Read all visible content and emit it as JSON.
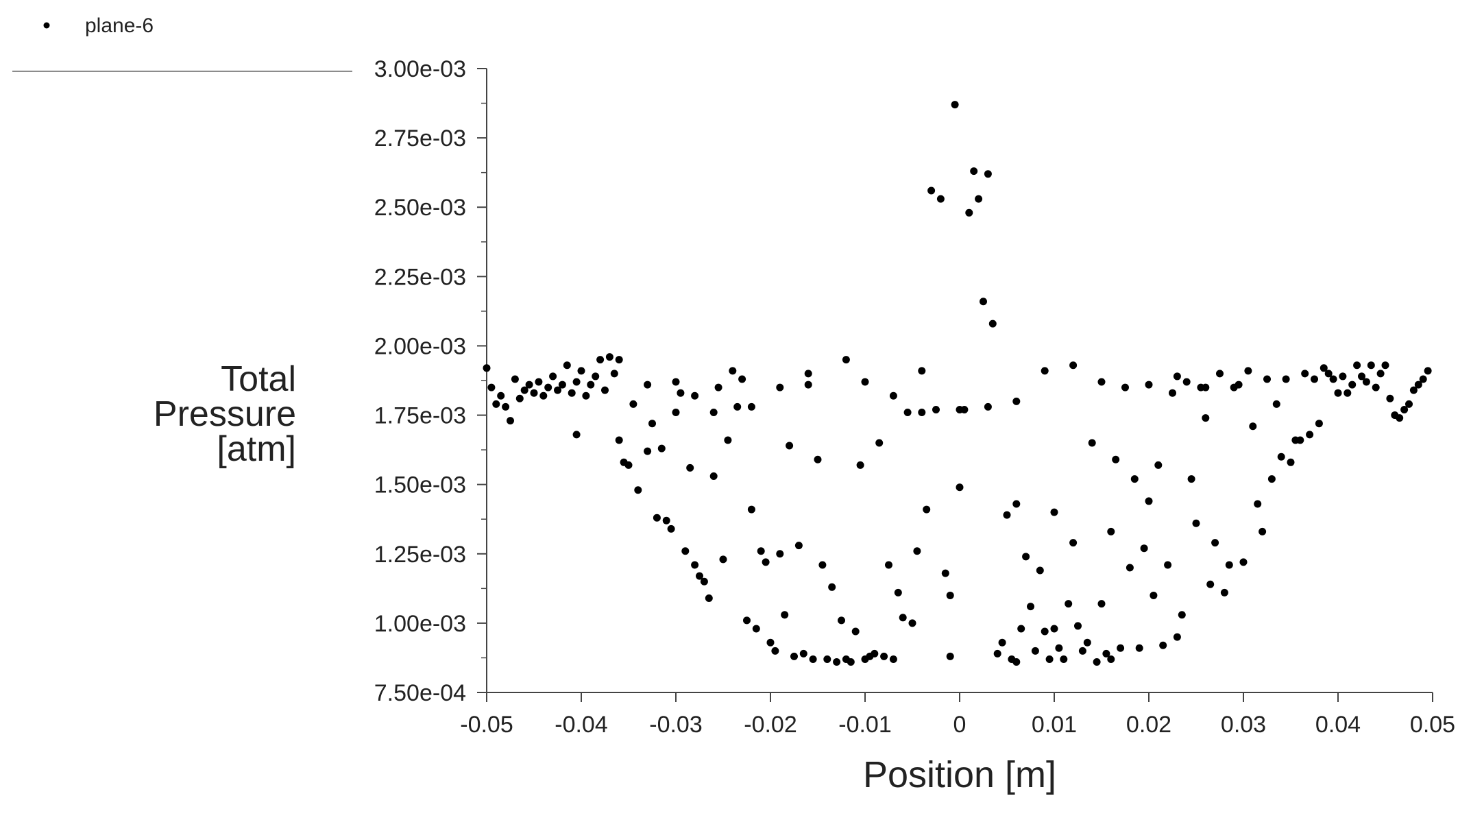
{
  "chart_data": {
    "type": "scatter",
    "xlabel": "Position [m]",
    "ylabel_lines": [
      "Total",
      "Pressure",
      "[atm]"
    ],
    "xlim": [
      -0.05,
      0.05
    ],
    "ylim": [
      0.00075,
      0.003
    ],
    "x_ticks": [
      -0.05,
      -0.04,
      -0.03,
      -0.02,
      -0.01,
      0,
      0.01,
      0.02,
      0.03,
      0.04,
      0.05
    ],
    "x_tick_labels": [
      "-0.05",
      "-0.04",
      "-0.03",
      "-0.02",
      "-0.01",
      "0",
      "0.01",
      "0.02",
      "0.03",
      "0.04",
      "0.05"
    ],
    "y_ticks": [
      0.00075,
      0.001,
      0.00125,
      0.0015,
      0.00175,
      0.002,
      0.00225,
      0.0025,
      0.00275,
      0.003
    ],
    "y_tick_labels": [
      "7.50e-04",
      "1.00e-03",
      "1.25e-03",
      "1.50e-03",
      "1.75e-03",
      "2.00e-03",
      "2.25e-03",
      "2.50e-03",
      "2.75e-03",
      "3.00e-03"
    ],
    "grid": false,
    "legend_position": "top-left",
    "series": [
      {
        "name": "plane-6",
        "color": "#000000",
        "points": [
          [
            -0.05,
            0.00192
          ],
          [
            -0.0495,
            0.00185
          ],
          [
            -0.049,
            0.00179
          ],
          [
            -0.0485,
            0.00182
          ],
          [
            -0.048,
            0.00178
          ],
          [
            -0.0475,
            0.00173
          ],
          [
            -0.047,
            0.00188
          ],
          [
            -0.0465,
            0.00181
          ],
          [
            -0.046,
            0.00184
          ],
          [
            -0.0455,
            0.00186
          ],
          [
            -0.045,
            0.00183
          ],
          [
            -0.0445,
            0.00187
          ],
          [
            -0.044,
            0.00182
          ],
          [
            -0.0435,
            0.00185
          ],
          [
            -0.043,
            0.00189
          ],
          [
            -0.0425,
            0.00184
          ],
          [
            -0.042,
            0.00186
          ],
          [
            -0.0415,
            0.00193
          ],
          [
            -0.041,
            0.00183
          ],
          [
            -0.0405,
            0.00187
          ],
          [
            -0.04,
            0.00191
          ],
          [
            -0.0395,
            0.00182
          ],
          [
            -0.039,
            0.00186
          ],
          [
            -0.0385,
            0.00189
          ],
          [
            -0.038,
            0.00195
          ],
          [
            -0.0375,
            0.00184
          ],
          [
            -0.037,
            0.00196
          ],
          [
            -0.0365,
            0.0019
          ],
          [
            -0.036,
            0.00195
          ],
          [
            -0.0405,
            0.00168
          ],
          [
            -0.036,
            0.00166
          ],
          [
            -0.0355,
            0.00158
          ],
          [
            -0.035,
            0.00157
          ],
          [
            -0.0345,
            0.00179
          ],
          [
            -0.034,
            0.00148
          ],
          [
            -0.033,
            0.00186
          ],
          [
            -0.0325,
            0.00172
          ],
          [
            -0.032,
            0.00138
          ],
          [
            -0.0315,
            0.00163
          ],
          [
            -0.031,
            0.00137
          ],
          [
            -0.0305,
            0.00134
          ],
          [
            -0.03,
            0.00187
          ],
          [
            -0.0295,
            0.00183
          ],
          [
            -0.029,
            0.00126
          ],
          [
            -0.0285,
            0.00156
          ],
          [
            -0.028,
            0.00121
          ],
          [
            -0.0275,
            0.00117
          ],
          [
            -0.027,
            0.00115
          ],
          [
            -0.0265,
            0.00109
          ],
          [
            -0.026,
            0.00153
          ],
          [
            -0.0255,
            0.00185
          ],
          [
            -0.025,
            0.00123
          ],
          [
            -0.0245,
            0.00166
          ],
          [
            -0.024,
            0.00191
          ],
          [
            -0.0235,
            0.00178
          ],
          [
            -0.023,
            0.00188
          ],
          [
            -0.0225,
            0.00101
          ],
          [
            -0.022,
            0.00141
          ],
          [
            -0.0215,
            0.00098
          ],
          [
            -0.021,
            0.00126
          ],
          [
            -0.0205,
            0.00122
          ],
          [
            -0.02,
            0.00093
          ],
          [
            -0.0195,
            0.0009
          ],
          [
            -0.019,
            0.00125
          ],
          [
            -0.0185,
            0.00103
          ],
          [
            -0.018,
            0.00164
          ],
          [
            -0.0175,
            0.00088
          ],
          [
            -0.017,
            0.00128
          ],
          [
            -0.0165,
            0.00089
          ],
          [
            -0.016,
            0.0019
          ],
          [
            -0.0155,
            0.00087
          ],
          [
            -0.015,
            0.00159
          ],
          [
            -0.0145,
            0.00121
          ],
          [
            -0.014,
            0.00087
          ],
          [
            -0.0135,
            0.00113
          ],
          [
            -0.013,
            0.00086
          ],
          [
            -0.0125,
            0.00101
          ],
          [
            -0.012,
            0.00195
          ],
          [
            -0.0115,
            0.00086
          ],
          [
            -0.011,
            0.00097
          ],
          [
            -0.0105,
            0.00157
          ],
          [
            -0.01,
            0.00087
          ],
          [
            -0.0095,
            0.00088
          ],
          [
            -0.009,
            0.00089
          ],
          [
            -0.0085,
            0.00165
          ],
          [
            -0.008,
            0.00088
          ],
          [
            -0.0075,
            0.00121
          ],
          [
            -0.007,
            0.00087
          ],
          [
            -0.0065,
            0.00111
          ],
          [
            -0.006,
            0.00102
          ],
          [
            -0.0055,
            0.00176
          ],
          [
            -0.005,
            0.001
          ],
          [
            -0.0045,
            0.00126
          ],
          [
            -0.004,
            0.00191
          ],
          [
            -0.0035,
            0.00141
          ],
          [
            -0.003,
            0.00256
          ],
          [
            -0.0025,
            0.00177
          ],
          [
            -0.002,
            0.00253
          ],
          [
            -0.0015,
            0.00118
          ],
          [
            -0.001,
            0.0011
          ],
          [
            -0.0005,
            0.00287
          ],
          [
            0.0,
            0.00149
          ],
          [
            0.0005,
            0.00177
          ],
          [
            0.001,
            0.00248
          ],
          [
            0.0015,
            0.00263
          ],
          [
            0.002,
            0.00253
          ],
          [
            0.0025,
            0.00216
          ],
          [
            0.003,
            0.00262
          ],
          [
            0.0035,
            0.00208
          ],
          [
            0.004,
            0.00089
          ],
          [
            0.0045,
            0.00093
          ],
          [
            0.005,
            0.00139
          ],
          [
            0.0055,
            0.00087
          ],
          [
            0.006,
            0.00143
          ],
          [
            0.0065,
            0.00098
          ],
          [
            0.007,
            0.00124
          ],
          [
            0.0075,
            0.00106
          ],
          [
            0.008,
            0.0009
          ],
          [
            0.0085,
            0.00119
          ],
          [
            0.009,
            0.00097
          ],
          [
            0.0095,
            0.00087
          ],
          [
            0.01,
            0.0014
          ],
          [
            0.0105,
            0.00091
          ],
          [
            0.011,
            0.00087
          ],
          [
            0.0115,
            0.00107
          ],
          [
            0.012,
            0.00129
          ],
          [
            0.0125,
            0.00099
          ],
          [
            0.013,
            0.0009
          ],
          [
            0.0135,
            0.00093
          ],
          [
            0.014,
            0.00165
          ],
          [
            0.0145,
            0.00086
          ],
          [
            0.015,
            0.00107
          ],
          [
            0.0155,
            0.00089
          ],
          [
            0.016,
            0.00133
          ],
          [
            0.0165,
            0.00159
          ],
          [
            0.017,
            0.00091
          ],
          [
            0.0175,
            0.00185
          ],
          [
            0.018,
            0.0012
          ],
          [
            0.0185,
            0.00152
          ],
          [
            0.019,
            0.00091
          ],
          [
            0.0195,
            0.00127
          ],
          [
            0.02,
            0.00144
          ],
          [
            0.0205,
            0.0011
          ],
          [
            0.021,
            0.00157
          ],
          [
            0.0215,
            0.00092
          ],
          [
            0.022,
            0.00121
          ],
          [
            0.0225,
            0.00183
          ],
          [
            0.023,
            0.00095
          ],
          [
            0.0235,
            0.00103
          ],
          [
            0.024,
            0.00187
          ],
          [
            0.0245,
            0.00152
          ],
          [
            0.025,
            0.00136
          ],
          [
            0.0255,
            0.00185
          ],
          [
            0.026,
            0.00174
          ],
          [
            0.0265,
            0.00114
          ],
          [
            0.027,
            0.00129
          ],
          [
            0.0275,
            0.0019
          ],
          [
            0.028,
            0.00111
          ],
          [
            0.0285,
            0.00121
          ],
          [
            0.029,
            0.00185
          ],
          [
            0.0295,
            0.00186
          ],
          [
            0.03,
            0.00122
          ],
          [
            0.0305,
            0.00191
          ],
          [
            0.031,
            0.00171
          ],
          [
            0.0315,
            0.00143
          ],
          [
            0.032,
            0.00133
          ],
          [
            0.0325,
            0.00188
          ],
          [
            0.033,
            0.00152
          ],
          [
            0.0335,
            0.00179
          ],
          [
            0.034,
            0.0016
          ],
          [
            0.0345,
            0.00188
          ],
          [
            0.035,
            0.00158
          ],
          [
            0.0355,
            0.00166
          ],
          [
            0.036,
            0.00166
          ],
          [
            0.0365,
            0.0019
          ],
          [
            0.037,
            0.00168
          ],
          [
            0.0375,
            0.00188
          ],
          [
            0.038,
            0.00172
          ],
          [
            0.0385,
            0.00192
          ],
          [
            0.039,
            0.0019
          ],
          [
            0.0395,
            0.00188
          ],
          [
            0.04,
            0.00183
          ],
          [
            0.0405,
            0.00189
          ],
          [
            0.041,
            0.00183
          ],
          [
            0.0415,
            0.00186
          ],
          [
            0.042,
            0.00193
          ],
          [
            0.0425,
            0.00189
          ],
          [
            0.043,
            0.00187
          ],
          [
            0.0435,
            0.00193
          ],
          [
            0.044,
            0.00185
          ],
          [
            0.0445,
            0.0019
          ],
          [
            0.045,
            0.00193
          ],
          [
            0.0455,
            0.00181
          ],
          [
            0.046,
            0.00175
          ],
          [
            0.0465,
            0.00174
          ],
          [
            0.047,
            0.00177
          ],
          [
            0.0475,
            0.00179
          ],
          [
            0.048,
            0.00184
          ],
          [
            0.0485,
            0.00186
          ],
          [
            0.049,
            0.00188
          ],
          [
            0.0495,
            0.00191
          ],
          [
            -0.019,
            0.00185
          ],
          [
            -0.016,
            0.00186
          ],
          [
            -0.01,
            0.00187
          ],
          [
            -0.007,
            0.00182
          ],
          [
            -0.004,
            0.00176
          ],
          [
            0.0,
            0.00177
          ],
          [
            0.003,
            0.00178
          ],
          [
            0.006,
            0.0018
          ],
          [
            0.009,
            0.00191
          ],
          [
            0.012,
            0.00193
          ],
          [
            0.015,
            0.00187
          ],
          [
            0.02,
            0.00186
          ],
          [
            0.023,
            0.00189
          ],
          [
            0.026,
            0.00185
          ],
          [
            -0.022,
            0.00178
          ],
          [
            -0.026,
            0.00176
          ],
          [
            -0.028,
            0.00182
          ],
          [
            -0.033,
            0.00162
          ],
          [
            -0.03,
            0.00176
          ],
          [
            0.01,
            0.00098
          ],
          [
            -0.012,
            0.00087
          ],
          [
            0.006,
            0.00086
          ],
          [
            -0.001,
            0.00088
          ],
          [
            0.016,
            0.00087
          ]
        ]
      }
    ]
  }
}
